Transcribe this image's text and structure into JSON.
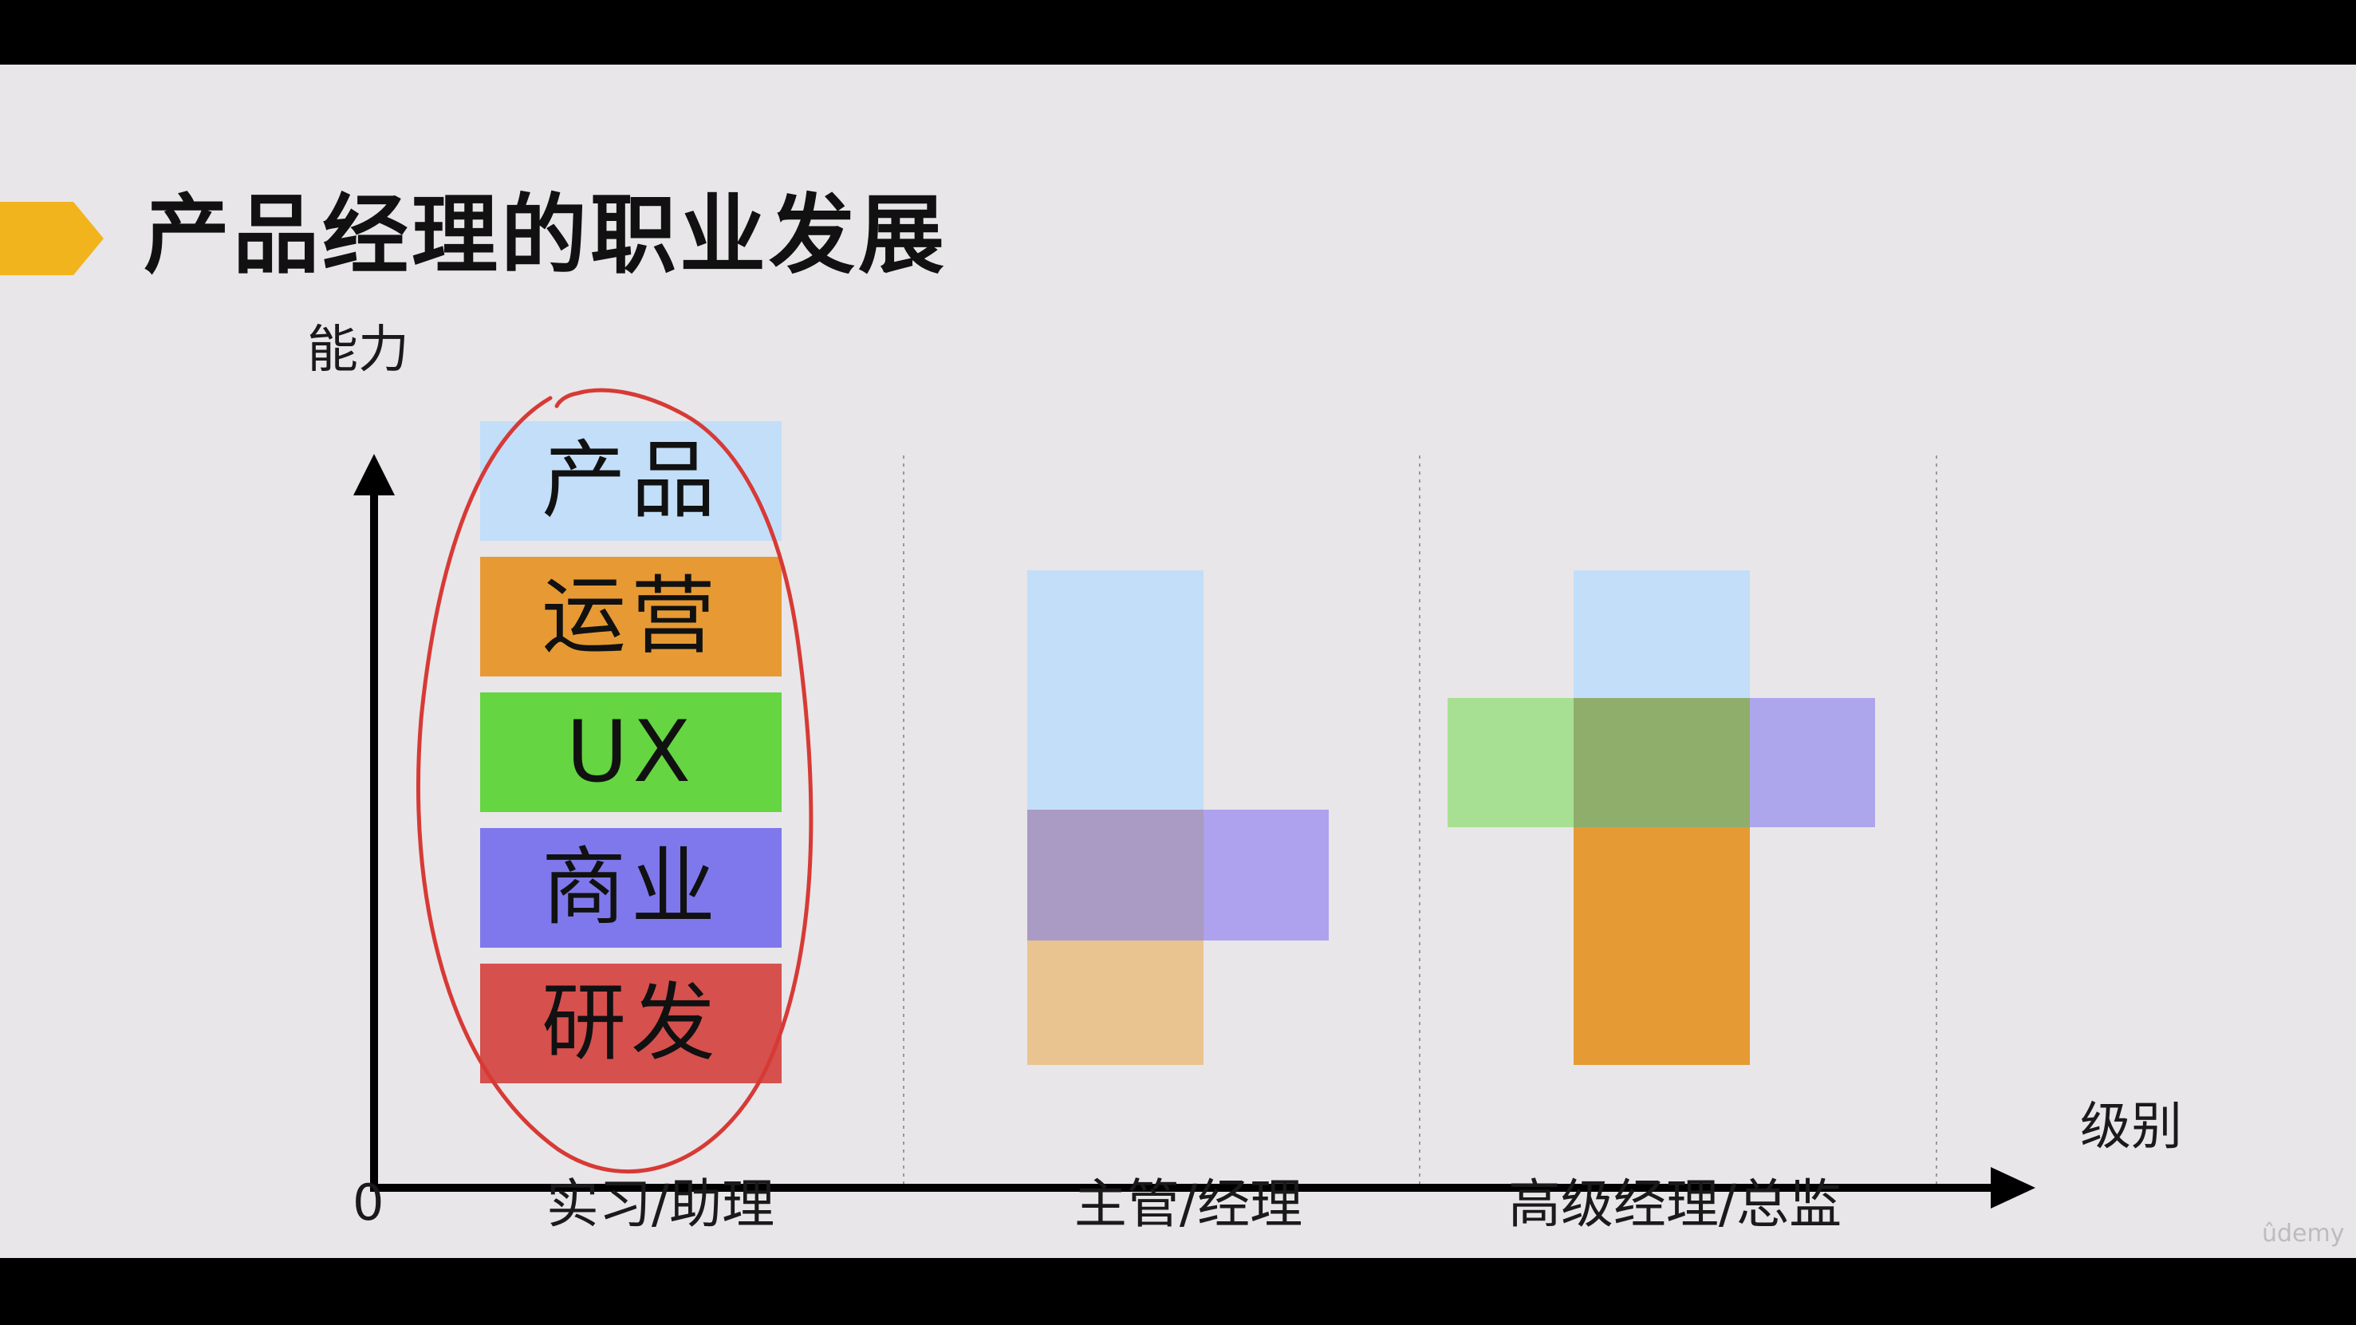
{
  "title": "产品经理的职业发展",
  "axis": {
    "y_label": "能力",
    "x_label": "级别",
    "origin": "0"
  },
  "levels": [
    {
      "label": "实习/助理"
    },
    {
      "label": "主管/经理"
    },
    {
      "label": "高级经理/总监"
    }
  ],
  "skills": [
    {
      "label": "产品",
      "color": "#c2def9"
    },
    {
      "label": "运营",
      "color": "#e79a33"
    },
    {
      "label": "UX",
      "color": "#65d542"
    },
    {
      "label": "商业",
      "color": "#7f78ec"
    },
    {
      "label": "研发",
      "color": "#d6504e"
    }
  ],
  "colors": {
    "accent": "#f2b41d",
    "annotation": "#d73a36",
    "axis": "#000000",
    "divider": "#9a9a9a"
  },
  "watermark": "ûdemy"
}
